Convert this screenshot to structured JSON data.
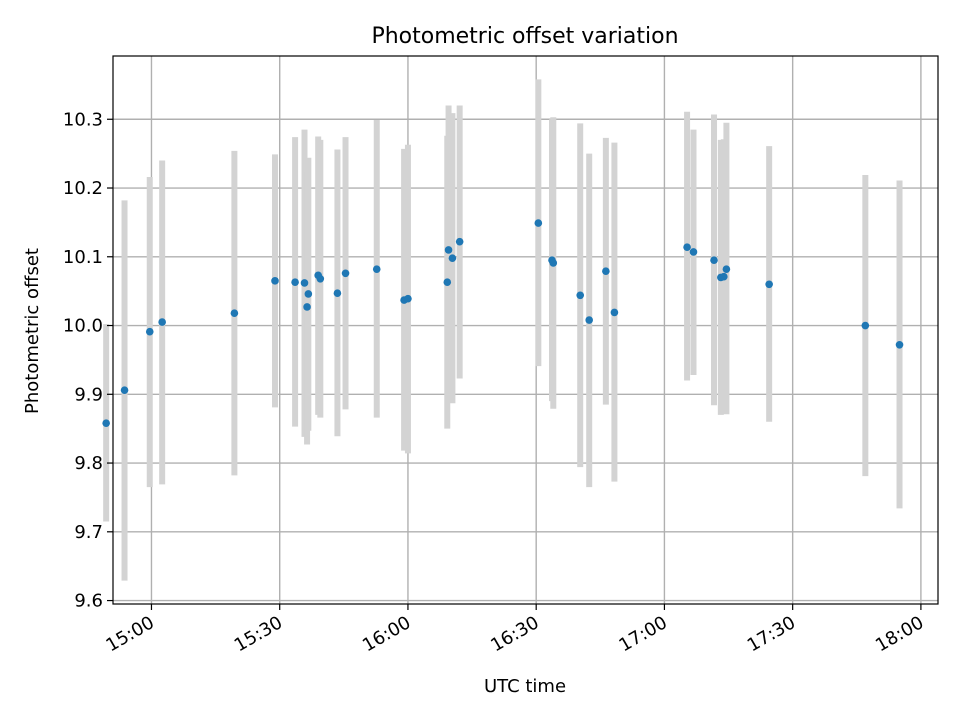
{
  "chart_data": {
    "type": "scatter",
    "title": "Photometric offset variation",
    "xlabel": "UTC time",
    "ylabel": "Photometric offset",
    "x_is_time": true,
    "xlim": [
      "14:51",
      "18:04"
    ],
    "ylim": [
      9.595,
      10.392
    ],
    "x_ticks": [
      "15:00",
      "15:30",
      "16:00",
      "16:30",
      "17:00",
      "17:30",
      "18:00"
    ],
    "y_ticks": [
      9.6,
      9.7,
      9.8,
      9.9,
      10.0,
      10.1,
      10.2,
      10.3
    ],
    "y_tick_labels": [
      "9.6",
      "9.7",
      "9.8",
      "9.9",
      "10.0",
      "10.1",
      "10.2",
      "10.3"
    ],
    "grid": true,
    "colors": {
      "points": "#1f77b4",
      "errorbars": "#d3d3d3",
      "grid": "#b0b0b0"
    },
    "points": [
      {
        "t": "14:49.4",
        "y": 9.858,
        "lo": 9.715,
        "hi": 10.002
      },
      {
        "t": "14:53.7",
        "y": 9.906,
        "lo": 9.629,
        "hi": 10.182
      },
      {
        "t": "14:59.6",
        "y": 9.991,
        "lo": 9.765,
        "hi": 10.216
      },
      {
        "t": "15:02.5",
        "y": 10.005,
        "lo": 9.769,
        "hi": 10.24
      },
      {
        "t": "15:19.4",
        "y": 10.018,
        "lo": 9.782,
        "hi": 10.254
      },
      {
        "t": "15:28.9",
        "y": 10.065,
        "lo": 9.881,
        "hi": 10.249
      },
      {
        "t": "15:33.6",
        "y": 10.063,
        "lo": 9.853,
        "hi": 10.274
      },
      {
        "t": "15:35.8",
        "y": 10.062,
        "lo": 9.838,
        "hi": 10.285
      },
      {
        "t": "15:36.4",
        "y": 10.027,
        "lo": 9.827,
        "hi": 10.224
      },
      {
        "t": "15:36.7",
        "y": 10.046,
        "lo": 9.847,
        "hi": 10.244
      },
      {
        "t": "15:39.0",
        "y": 10.073,
        "lo": 9.87,
        "hi": 10.275
      },
      {
        "t": "15:39.5",
        "y": 10.068,
        "lo": 9.866,
        "hi": 10.27
      },
      {
        "t": "15:43.5",
        "y": 10.047,
        "lo": 9.839,
        "hi": 10.256
      },
      {
        "t": "15:45.4",
        "y": 10.076,
        "lo": 9.878,
        "hi": 10.274
      },
      {
        "t": "15:52.7",
        "y": 10.082,
        "lo": 9.866,
        "hi": 10.299
      },
      {
        "t": "15:59.1",
        "y": 10.037,
        "lo": 9.818,
        "hi": 10.257
      },
      {
        "t": "16:00.0",
        "y": 10.039,
        "lo": 9.814,
        "hi": 10.263
      },
      {
        "t": "16:09.2",
        "y": 10.063,
        "lo": 9.85,
        "hi": 10.276
      },
      {
        "t": "16:09.5",
        "y": 10.11,
        "lo": 9.9,
        "hi": 10.32
      },
      {
        "t": "16:10.4",
        "y": 10.098,
        "lo": 9.887,
        "hi": 10.309
      },
      {
        "t": "16:12.1",
        "y": 10.122,
        "lo": 9.923,
        "hi": 10.32
      },
      {
        "t": "16:30.5",
        "y": 10.149,
        "lo": 9.941,
        "hi": 10.358
      },
      {
        "t": "16:33.7",
        "y": 10.095,
        "lo": 9.89,
        "hi": 10.3
      },
      {
        "t": "16:34.0",
        "y": 10.091,
        "lo": 9.879,
        "hi": 10.303
      },
      {
        "t": "16:40.3",
        "y": 10.044,
        "lo": 9.794,
        "hi": 10.294
      },
      {
        "t": "16:42.4",
        "y": 10.008,
        "lo": 9.765,
        "hi": 10.25
      },
      {
        "t": "16:46.3",
        "y": 10.079,
        "lo": 9.885,
        "hi": 10.273
      },
      {
        "t": "16:48.3",
        "y": 10.019,
        "lo": 9.773,
        "hi": 10.266
      },
      {
        "t": "17:05.3",
        "y": 10.114,
        "lo": 9.92,
        "hi": 10.311
      },
      {
        "t": "17:06.8",
        "y": 10.107,
        "lo": 9.928,
        "hi": 10.285
      },
      {
        "t": "17:11.6",
        "y": 10.095,
        "lo": 9.884,
        "hi": 10.307
      },
      {
        "t": "17:13.2",
        "y": 10.07,
        "lo": 9.87,
        "hi": 10.27
      },
      {
        "t": "17:14.5",
        "y": 10.082,
        "lo": 9.871,
        "hi": 10.295
      },
      {
        "t": "17:13.9",
        "y": 10.071,
        "lo": 9.872,
        "hi": 10.271
      },
      {
        "t": "17:24.5",
        "y": 10.06,
        "lo": 9.86,
        "hi": 10.261
      },
      {
        "t": "17:47.0",
        "y": 10.0,
        "lo": 9.781,
        "hi": 10.219
      },
      {
        "t": "17:55.0",
        "y": 9.972,
        "lo": 9.734,
        "hi": 10.211
      }
    ]
  }
}
